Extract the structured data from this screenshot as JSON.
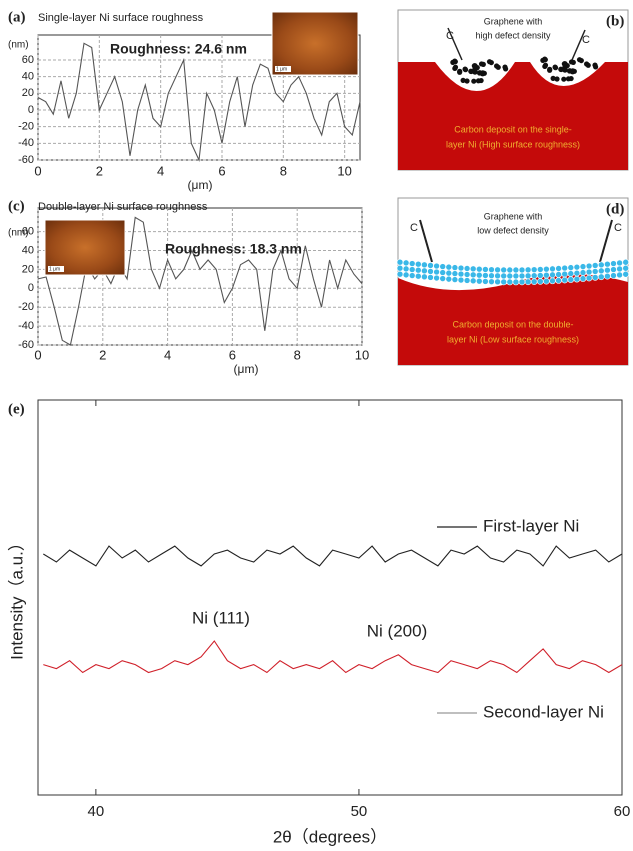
{
  "chart_data": [
    {
      "type": "line",
      "label": "(a)",
      "title": "Single-layer Ni surface roughness",
      "annotation": "Roughness: 24.6 nm",
      "scale_bar": "1 μm",
      "xlabel": "(μm)",
      "ylabel": "(nm)",
      "x": [
        0,
        0.25,
        0.5,
        0.75,
        1,
        1.25,
        1.5,
        1.75,
        2,
        2.25,
        2.5,
        2.75,
        3,
        3.25,
        3.5,
        3.75,
        4,
        4.25,
        4.5,
        4.75,
        5,
        5.25,
        5.5,
        5.75,
        6,
        6.25,
        6.5,
        6.75,
        7,
        7.25,
        7.5,
        7.75,
        8,
        8.25,
        8.5,
        8.75,
        9,
        9.25,
        9.5,
        9.75,
        10,
        10.25,
        10.5
      ],
      "series": [
        {
          "color": "#555555",
          "values": [
            15,
            10,
            -5,
            35,
            -10,
            20,
            80,
            75,
            0,
            20,
            40,
            10,
            -55,
            0,
            30,
            -10,
            -20,
            20,
            40,
            60,
            -40,
            -60,
            20,
            0,
            -40,
            10,
            40,
            -20,
            30,
            55,
            50,
            20,
            10,
            30,
            40,
            20,
            -10,
            -30,
            10,
            20,
            -20,
            -30,
            10
          ]
        }
      ],
      "xlim": [
        0,
        10.5
      ],
      "ylim": [
        -60,
        90
      ],
      "xticks": [
        0,
        2,
        4,
        6,
        8,
        10
      ],
      "yticks": [
        -60,
        -40,
        -20,
        0,
        20,
        40,
        60
      ],
      "grid": true
    },
    {
      "type": "line",
      "label": "(c)",
      "title": "Double-layer Ni surface roughness",
      "annotation": "Roughness: 18.3 nm",
      "scale_bar": "1 μm",
      "xlabel": "(μm)",
      "ylabel": "(nm)",
      "x": [
        0,
        0.25,
        0.5,
        0.75,
        1,
        1.25,
        1.5,
        1.75,
        2,
        2.25,
        2.5,
        2.75,
        3,
        3.25,
        3.5,
        3.75,
        4,
        4.25,
        4.5,
        4.75,
        5,
        5.25,
        5.5,
        5.75,
        6,
        6.25,
        6.5,
        6.75,
        7,
        7.25,
        7.5,
        7.75,
        8,
        8.25,
        8.5,
        8.75,
        9,
        9.25,
        9.5,
        9.75,
        10
      ],
      "series": [
        {
          "color": "#555555",
          "values": [
            10,
            12,
            -20,
            -55,
            -60,
            -20,
            25,
            10,
            20,
            5,
            25,
            10,
            75,
            70,
            20,
            0,
            30,
            10,
            20,
            40,
            20,
            30,
            20,
            -15,
            0,
            25,
            30,
            20,
            -45,
            20,
            40,
            10,
            0,
            45,
            10,
            -20,
            30,
            0,
            30,
            15,
            5
          ]
        }
      ],
      "xlim": [
        0,
        10
      ],
      "ylim": [
        -60,
        85
      ],
      "xticks": [
        0,
        2,
        4,
        6,
        8,
        10
      ],
      "yticks": [
        -60,
        -40,
        -20,
        0,
        20,
        40,
        60
      ],
      "grid": true
    },
    {
      "type": "line",
      "label": "(e)",
      "xlabel": "2θ（degrees）",
      "ylabel": "Intensity（a.u.）",
      "x": [
        38,
        38.5,
        39,
        39.5,
        40,
        40.5,
        41,
        41.5,
        42,
        42.5,
        43,
        43.5,
        44,
        44.5,
        45,
        45.5,
        46,
        46.5,
        47,
        47.5,
        48,
        48.5,
        49,
        49.5,
        50,
        50.5,
        51,
        51.5,
        52,
        52.5,
        53,
        53.5,
        54,
        54.5,
        55,
        55.5,
        56,
        56.5,
        57,
        57.5,
        58,
        58.5,
        59,
        59.5,
        60
      ],
      "series": [
        {
          "name": "First-layer Ni",
          "color": "#222222",
          "values": [
            61,
            59,
            62,
            60,
            58,
            63,
            60,
            62,
            59,
            61,
            63,
            60,
            58,
            61,
            62,
            60,
            59,
            62,
            61,
            63,
            60,
            58,
            62,
            61,
            60,
            63,
            59,
            61,
            62,
            60,
            58,
            62,
            61,
            63,
            60,
            59,
            62,
            61,
            58,
            63,
            60,
            61,
            62,
            59,
            61
          ]
        },
        {
          "name": "Second-layer Ni",
          "color": "#d0202a",
          "values": [
            33,
            32,
            34,
            31,
            33,
            32,
            34,
            33,
            31,
            32,
            34,
            33,
            35,
            39,
            34,
            32,
            33,
            31,
            34,
            32,
            33,
            32,
            34,
            31,
            33,
            32,
            34,
            35.5,
            33,
            32,
            31,
            34,
            33,
            32,
            34,
            33,
            31,
            34,
            37,
            33,
            32,
            34,
            33,
            31,
            33
          ]
        }
      ],
      "annotations": [
        "Ni (111)",
        "Ni (200)"
      ],
      "xlim": [
        37.8,
        60
      ],
      "ylim": [
        0,
        100
      ],
      "xticks": [
        40,
        50,
        60
      ],
      "grid": false
    }
  ],
  "diagrams": [
    {
      "label": "(b)",
      "arrow_labels": [
        "C",
        "C"
      ],
      "graphene": [
        "Graphene with",
        "high defect density"
      ],
      "deposit": [
        "Carbon deposit on the single-",
        "layer Ni (High surface roughness)"
      ]
    },
    {
      "label": "(d)",
      "arrow_labels": [
        "C",
        "C"
      ],
      "graphene": [
        "Graphene with",
        "low defect density"
      ],
      "deposit": [
        "Carbon deposit on the double-",
        "layer Ni (Low surface roughness)"
      ]
    }
  ]
}
